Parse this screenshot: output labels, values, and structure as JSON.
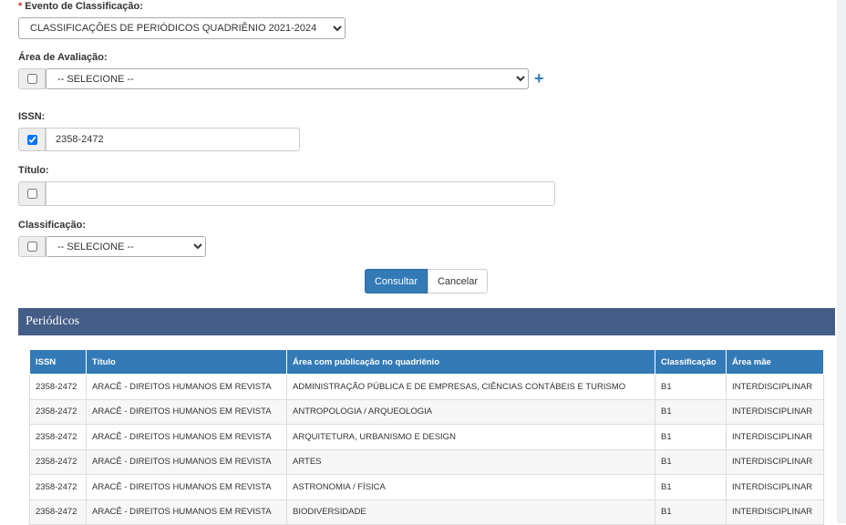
{
  "form": {
    "event": {
      "required_mark": "*",
      "label": "Evento de Classificação:",
      "value": "CLASSIFICAÇÕES DE PERIÓDICOS QUADRIÊNIO 2021-2024"
    },
    "area": {
      "label": "Área de Avaliação:",
      "value": "-- SELECIONE --",
      "checked": false,
      "add": "+"
    },
    "issn": {
      "label": "ISSN:",
      "value": "2358-2472",
      "checked": true
    },
    "titulo": {
      "label": "Título:",
      "checked": false
    },
    "classificacao": {
      "label": "Classificação:",
      "value": "-- SELECIONE --",
      "checked": false
    },
    "buttons": [
      "Consultar",
      "Cancelar"
    ]
  },
  "panel": {
    "title": "Periódicos"
  },
  "table": {
    "headers": [
      "ISSN",
      "Título",
      "Área com publicação no quadriênio",
      "Classificação",
      "Área mãe"
    ],
    "rows": [
      [
        "2358-2472",
        "ARACÊ - DIREITOS HUMANOS EM REVISTA",
        "ADMINISTRAÇÃO PÚBLICA E DE EMPRESAS, CIÊNCIAS CONTÁBEIS E TURISMO",
        "B1",
        "INTERDISCIPLINAR"
      ],
      [
        "2358-2472",
        "ARACÊ - DIREITOS HUMANOS EM REVISTA",
        "ANTROPOLOGIA / ARQUEOLOGIA",
        "B1",
        "INTERDISCIPLINAR"
      ],
      [
        "2358-2472",
        "ARACÊ - DIREITOS HUMANOS EM REVISTA",
        "ARQUITETURA, URBANISMO E DESIGN",
        "B1",
        "INTERDISCIPLINAR"
      ],
      [
        "2358-2472",
        "ARACÊ - DIREITOS HUMANOS EM REVISTA",
        "ARTES",
        "B1",
        "INTERDISCIPLINAR"
      ],
      [
        "2358-2472",
        "ARACÊ - DIREITOS HUMANOS EM REVISTA",
        "ASTRONOMIA / FÍSICA",
        "B1",
        "INTERDISCIPLINAR"
      ],
      [
        "2358-2472",
        "ARACÊ - DIREITOS HUMANOS EM REVISTA",
        "BIODIVERSIDADE",
        "B1",
        "INTERDISCIPLINAR"
      ]
    ]
  }
}
